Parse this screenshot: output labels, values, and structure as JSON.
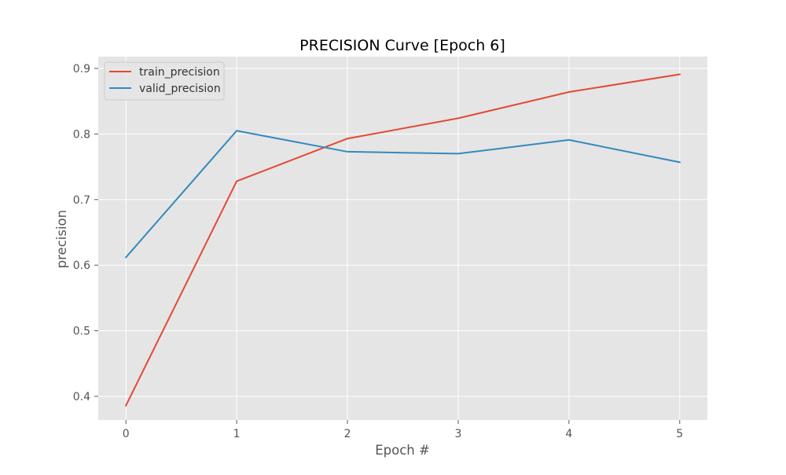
{
  "chart_data": {
    "type": "line",
    "title": "PRECISION Curve [Epoch 6]",
    "xlabel": "Epoch #",
    "ylabel": "precision",
    "x": [
      0,
      1,
      2,
      3,
      4,
      5
    ],
    "xticks": [
      "0",
      "1",
      "2",
      "3",
      "4",
      "5"
    ],
    "yticks": [
      "0.4",
      "0.5",
      "0.6",
      "0.7",
      "0.8",
      "0.9"
    ],
    "xlim": [
      -0.25,
      5.25
    ],
    "ylim": [
      0.364,
      0.918
    ],
    "grid": true,
    "legend_position": "top-left",
    "series": [
      {
        "name": "train_precision",
        "color": "#E24A33",
        "values": [
          0.386,
          0.728,
          0.793,
          0.824,
          0.864,
          0.891
        ]
      },
      {
        "name": "valid_precision",
        "color": "#348ABD",
        "values": [
          0.612,
          0.805,
          0.773,
          0.77,
          0.791,
          0.757
        ]
      }
    ],
    "colors": {
      "plot_background": "#E5E5E5",
      "grid": "#FFFFFF"
    }
  }
}
